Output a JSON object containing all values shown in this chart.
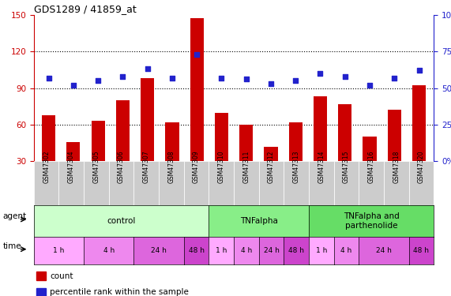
{
  "title": "GDS1289 / 41859_at",
  "samples": [
    "GSM47302",
    "GSM47304",
    "GSM47305",
    "GSM47306",
    "GSM47307",
    "GSM47308",
    "GSM47309",
    "GSM47310",
    "GSM47311",
    "GSM47312",
    "GSM47313",
    "GSM47314",
    "GSM47315",
    "GSM47316",
    "GSM47318",
    "GSM47320"
  ],
  "counts": [
    68,
    46,
    63,
    80,
    98,
    62,
    147,
    70,
    60,
    42,
    62,
    83,
    77,
    50,
    72,
    92
  ],
  "percentiles": [
    57,
    52,
    55,
    58,
    63,
    57,
    73,
    57,
    56,
    53,
    55,
    60,
    58,
    52,
    57,
    62
  ],
  "ylim_left": [
    30,
    150
  ],
  "ylim_right": [
    0,
    100
  ],
  "yticks_left": [
    30,
    60,
    90,
    120,
    150
  ],
  "yticks_right": [
    0,
    25,
    50,
    75,
    100
  ],
  "bar_color": "#cc0000",
  "dot_color": "#2222cc",
  "agent_groups": [
    {
      "label": "control",
      "start": 0,
      "end": 7,
      "color": "#ccffcc"
    },
    {
      "label": "TNFalpha",
      "start": 7,
      "end": 11,
      "color": "#88ee88"
    },
    {
      "label": "TNFalpha and\nparthenolide",
      "start": 11,
      "end": 16,
      "color": "#66dd66"
    }
  ],
  "time_spans": [
    {
      "label": "1 h",
      "start": 0,
      "end": 2,
      "color": "#ffaaff"
    },
    {
      "label": "4 h",
      "start": 2,
      "end": 4,
      "color": "#ee88ee"
    },
    {
      "label": "24 h",
      "start": 4,
      "end": 6,
      "color": "#dd66dd"
    },
    {
      "label": "48 h",
      "start": 6,
      "end": 7,
      "color": "#cc44cc"
    },
    {
      "label": "1 h",
      "start": 7,
      "end": 8,
      "color": "#ffaaff"
    },
    {
      "label": "4 h",
      "start": 8,
      "end": 9,
      "color": "#ee88ee"
    },
    {
      "label": "24 h",
      "start": 9,
      "end": 10,
      "color": "#dd66dd"
    },
    {
      "label": "48 h",
      "start": 10,
      "end": 11,
      "color": "#cc44cc"
    },
    {
      "label": "1 h",
      "start": 11,
      "end": 12,
      "color": "#ffaaff"
    },
    {
      "label": "4 h",
      "start": 12,
      "end": 13,
      "color": "#ee88ee"
    },
    {
      "label": "24 h",
      "start": 13,
      "end": 15,
      "color": "#dd66dd"
    },
    {
      "label": "48 h",
      "start": 15,
      "end": 16,
      "color": "#cc44cc"
    }
  ],
  "agent_label": "agent",
  "time_label": "time",
  "legend_count": "count",
  "legend_percentile": "percentile rank within the sample",
  "axis_color_left": "#cc0000",
  "axis_color_right": "#2222cc",
  "sample_bg_color": "#cccccc",
  "hgrid_ticks": [
    60,
    90,
    120
  ]
}
